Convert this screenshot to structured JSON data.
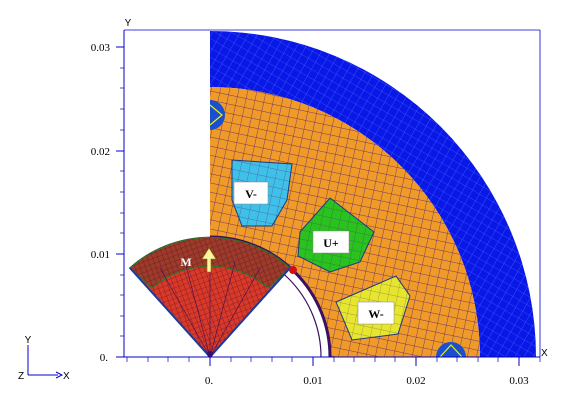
{
  "axes": {
    "y_label": "Y",
    "x_label": "X",
    "y_ticks": [
      "0.03",
      "0.02",
      "0.01",
      "0."
    ],
    "x_ticks": [
      "0.",
      "0.01",
      "0.02",
      "0.03"
    ]
  },
  "triad": {
    "y": "Y",
    "z": "Z",
    "x": "X"
  },
  "regions": {
    "v_minus": "V-",
    "u_plus": "U+",
    "w_minus": "W-",
    "magnet": "M"
  },
  "colors": {
    "stator_yoke": "#0b17e6",
    "stator_iron": "#f09a2a",
    "slot_v": "#3fc0e8",
    "slot_u": "#29c21f",
    "slot_w": "#e6e62e",
    "rotor_iron": "#d8392a",
    "magnet": "#9c3a2c",
    "mesh_lines": "#5a1e8a",
    "axis_blue": "#0000cc"
  }
}
